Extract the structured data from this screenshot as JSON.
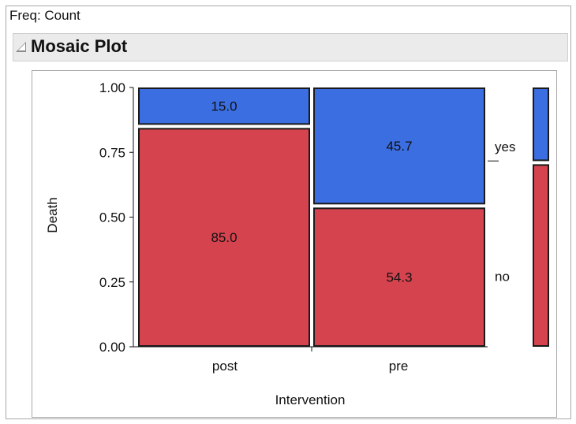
{
  "report": {
    "freq_label": "Freq: Count",
    "outline_title": "Mosaic Plot"
  },
  "chart_data": {
    "type": "mosaic",
    "title": "Mosaic Plot",
    "xlabel": "Intervention",
    "ylabel": "Death",
    "ylim": [
      0,
      1
    ],
    "yticks": [
      "0.00",
      "0.25",
      "0.50",
      "0.75",
      "1.00"
    ],
    "categories": [
      "post",
      "pre"
    ],
    "column_widths": [
      0.5,
      0.5
    ],
    "response_levels": [
      "no",
      "yes"
    ],
    "series": [
      {
        "name": "no",
        "values": [
          0.85,
          0.543
        ],
        "labels": [
          "85.0",
          "54.3"
        ],
        "color": "#d5434f"
      },
      {
        "name": "yes",
        "values": [
          0.15,
          0.457
        ],
        "labels": [
          "15.0",
          "45.7"
        ],
        "color": "#3b6ee0"
      }
    ],
    "marginal": {
      "values": [
        0.71,
        0.29
      ]
    },
    "grid": false,
    "colors": {
      "no": "#d5434f",
      "yes": "#3b6ee0",
      "border": "#1a1a1a"
    }
  }
}
